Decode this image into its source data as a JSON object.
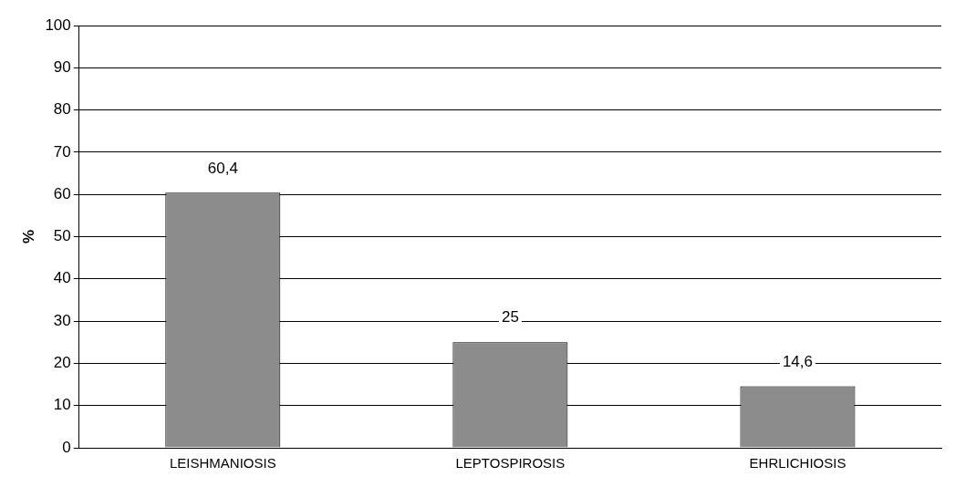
{
  "chart_data": {
    "type": "bar",
    "ylabel": "%",
    "categories": [
      "LEISHMANIOSIS",
      "LEPTOSPIROSIS",
      "EHRLICHIOSIS"
    ],
    "values": [
      60.4,
      25,
      14.6
    ],
    "value_labels": [
      "60,4",
      "25",
      "14,6"
    ],
    "color": "#8c8c8c",
    "ylim": [
      0,
      100
    ],
    "yticks": [
      0,
      10,
      20,
      30,
      40,
      50,
      60,
      70,
      80,
      90,
      100
    ],
    "grid": "y",
    "legend": false
  }
}
